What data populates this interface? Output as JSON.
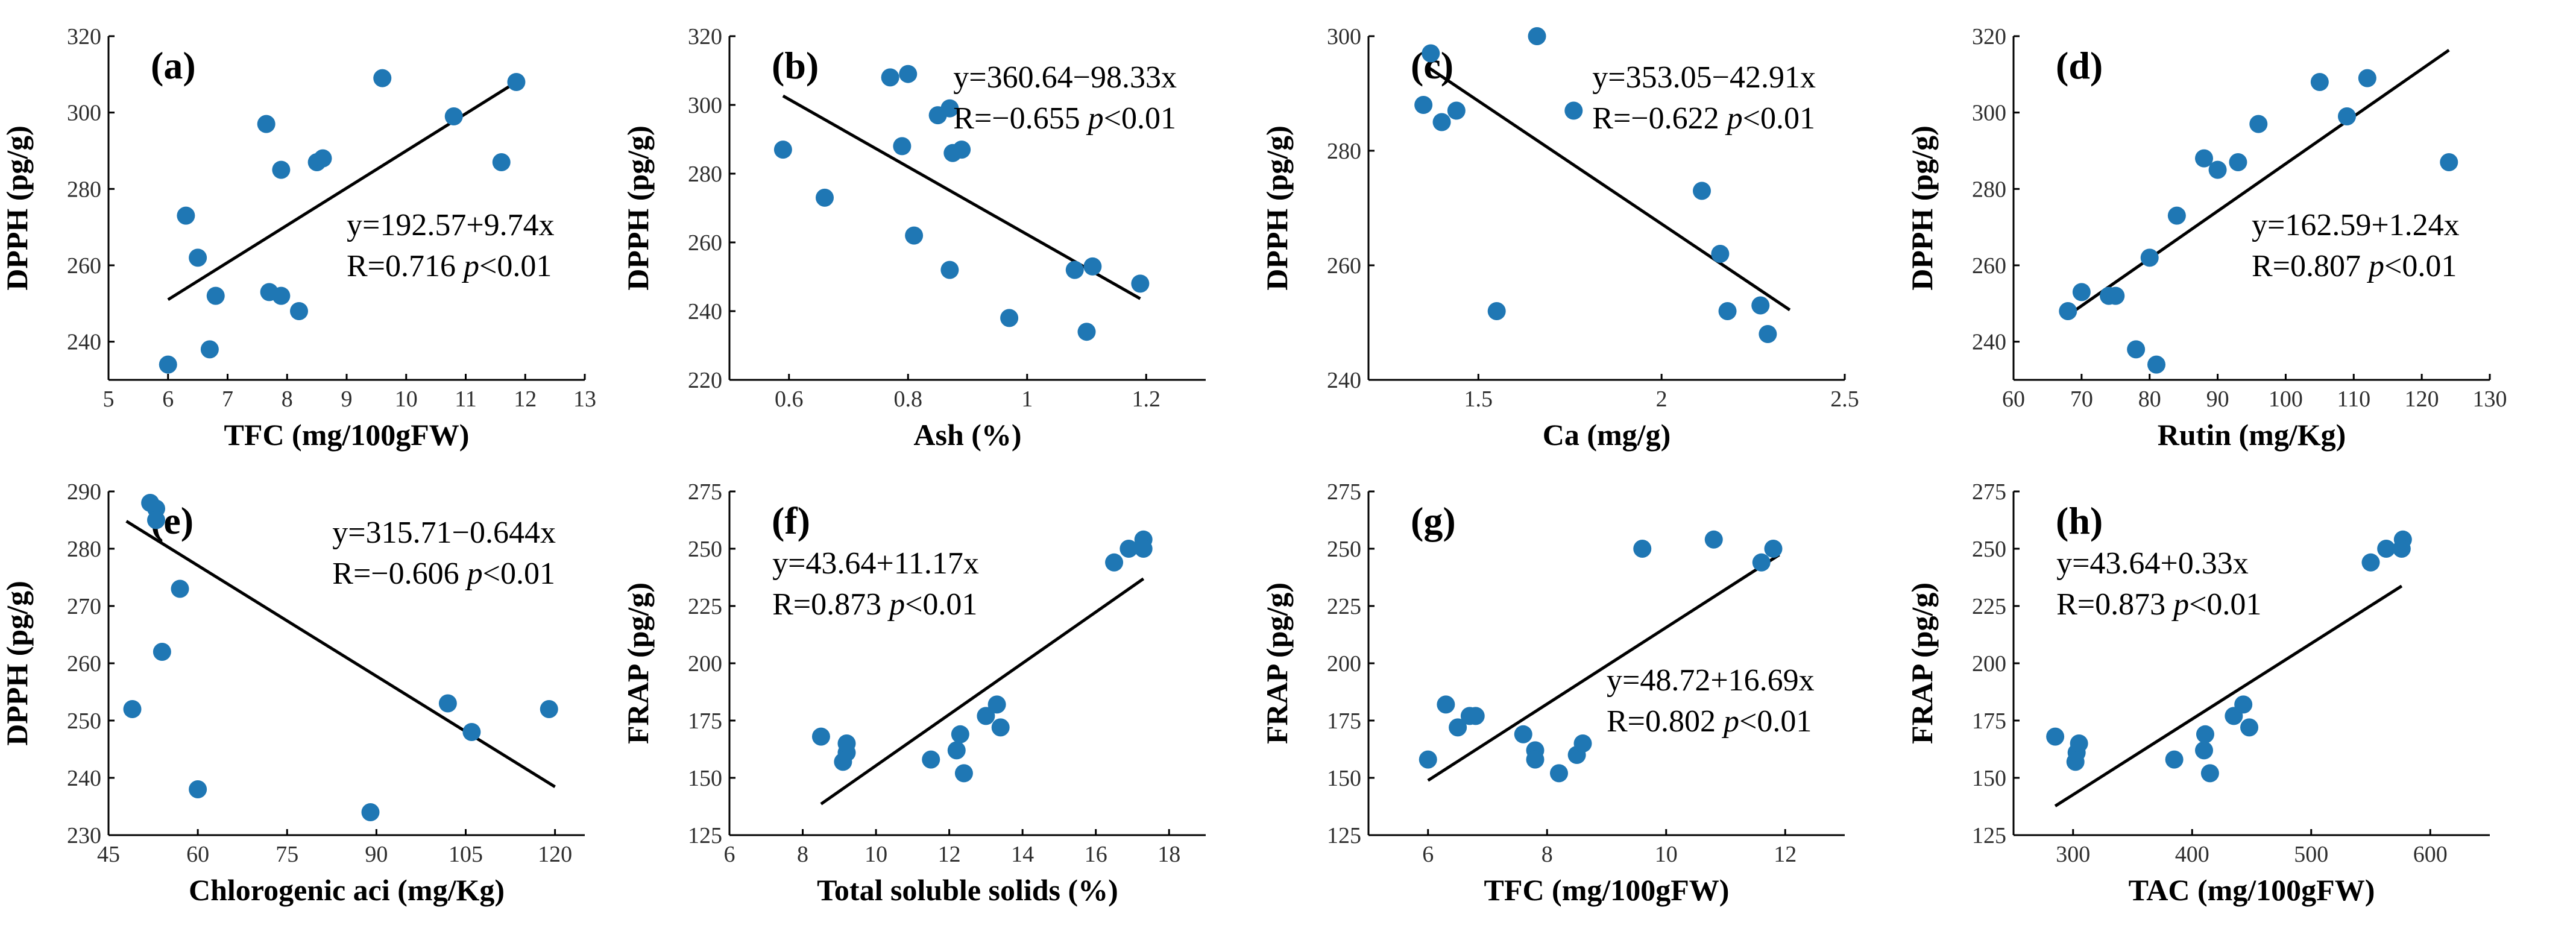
{
  "chart_data": [
    {
      "type": "scatter",
      "panel": "(a)",
      "xlabel": "TFC (mg/100gFW)",
      "ylabel": "DPPH (pg/g)",
      "xlim": [
        5,
        13
      ],
      "ylim": [
        230,
        320
      ],
      "xticks": [
        5,
        6,
        7,
        8,
        9,
        10,
        11,
        12,
        13
      ],
      "yticks": [
        240,
        260,
        280,
        300,
        320
      ],
      "points": [
        [
          6.0,
          234
        ],
        [
          6.3,
          273
        ],
        [
          6.5,
          262
        ],
        [
          6.7,
          238
        ],
        [
          6.8,
          252
        ],
        [
          7.65,
          297
        ],
        [
          7.7,
          253
        ],
        [
          7.9,
          252
        ],
        [
          7.9,
          285
        ],
        [
          8.2,
          248
        ],
        [
          8.5,
          287
        ],
        [
          8.6,
          288
        ],
        [
          9.6,
          309
        ],
        [
          10.8,
          299
        ],
        [
          11.6,
          287
        ],
        [
          11.85,
          308
        ]
      ],
      "fit": {
        "intercept": 192.57,
        "slope": 9.74,
        "x_range": [
          6.0,
          11.9
        ]
      },
      "annotation": {
        "equation": "y=192.57+9.74x",
        "r_prefix": "R=0.716 ",
        "p_italic": "p",
        "p_suffix": "<0.01",
        "position": "center-right"
      }
    },
    {
      "type": "scatter",
      "panel": "(b)",
      "xlabel": "Ash (%)",
      "ylabel": "DPPH (pg/g)",
      "xlim": [
        0.5,
        1.3
      ],
      "ylim": [
        220,
        320
      ],
      "xticks": [
        0.6,
        0.8,
        1.0,
        1.2
      ],
      "yticks": [
        220,
        240,
        260,
        280,
        300,
        320
      ],
      "points": [
        [
          0.59,
          287
        ],
        [
          0.66,
          273
        ],
        [
          0.77,
          308
        ],
        [
          0.79,
          288
        ],
        [
          0.8,
          309
        ],
        [
          0.81,
          262
        ],
        [
          0.85,
          297
        ],
        [
          0.87,
          252
        ],
        [
          0.87,
          299
        ],
        [
          0.875,
          286
        ],
        [
          0.89,
          287
        ],
        [
          0.97,
          238
        ],
        [
          1.08,
          252
        ],
        [
          1.1,
          234
        ],
        [
          1.11,
          253
        ],
        [
          1.19,
          248
        ]
      ],
      "fit": {
        "intercept": 360.64,
        "slope": -98.33,
        "x_range": [
          0.59,
          1.19
        ]
      },
      "annotation": {
        "equation": "y=360.64−98.33x",
        "r_prefix": "R=−0.655 ",
        "p_italic": "p",
        "p_suffix": "<0.01",
        "position": "top-right"
      }
    },
    {
      "type": "scatter",
      "panel": "(c)",
      "xlabel": "Ca (mg/g)",
      "ylabel": "DPPH (pg/g)",
      "xlim": [
        1.2,
        2.5
      ],
      "ylim": [
        240,
        300
      ],
      "xticks": [
        1.5,
        2.0,
        2.5
      ],
      "yticks": [
        240,
        260,
        280,
        300
      ],
      "points": [
        [
          1.35,
          288
        ],
        [
          1.37,
          297
        ],
        [
          1.4,
          285
        ],
        [
          1.44,
          287
        ],
        [
          1.55,
          252
        ],
        [
          1.66,
          300
        ],
        [
          1.76,
          287
        ],
        [
          2.11,
          273
        ],
        [
          2.16,
          262
        ],
        [
          2.18,
          252
        ],
        [
          2.27,
          253
        ],
        [
          2.29,
          248
        ]
      ],
      "fit": {
        "intercept": 353.05,
        "slope": -42.91,
        "x_range": [
          1.36,
          2.35
        ]
      },
      "annotation": {
        "equation": "y=353.05−42.91x",
        "r_prefix": "R=−0.622 ",
        "p_italic": "p",
        "p_suffix": "<0.01",
        "position": "top-right"
      }
    },
    {
      "type": "scatter",
      "panel": "(d)",
      "xlabel": "Rutin (mg/Kg)",
      "ylabel": "DPPH (pg/g)",
      "xlim": [
        60,
        130
      ],
      "ylim": [
        230,
        320
      ],
      "xticks": [
        60,
        70,
        80,
        90,
        100,
        110,
        120,
        130
      ],
      "yticks": [
        240,
        260,
        280,
        300,
        320
      ],
      "points": [
        [
          68,
          248
        ],
        [
          70,
          253
        ],
        [
          74,
          252
        ],
        [
          75,
          252
        ],
        [
          78,
          238
        ],
        [
          80,
          262
        ],
        [
          81,
          234
        ],
        [
          84,
          273
        ],
        [
          88,
          288
        ],
        [
          90,
          285
        ],
        [
          93,
          287
        ],
        [
          96,
          297
        ],
        [
          105,
          308
        ],
        [
          109,
          299
        ],
        [
          112,
          309
        ],
        [
          124,
          287
        ]
      ],
      "fit": {
        "intercept": 162.59,
        "slope": 1.24,
        "x_range": [
          68,
          124
        ]
      },
      "annotation": {
        "equation": "y=162.59+1.24x",
        "r_prefix": "R=0.807 ",
        "p_italic": "p",
        "p_suffix": "<0.01",
        "position": "center-right"
      }
    },
    {
      "type": "scatter",
      "panel": "(e)",
      "xlabel": "Chlorogenic aci (mg/Kg)",
      "ylabel": "DPPH (pg/g)",
      "xlim": [
        45,
        125
      ],
      "ylim": [
        230,
        290
      ],
      "xticks": [
        45,
        60,
        75,
        90,
        105,
        120
      ],
      "yticks": [
        230,
        240,
        250,
        260,
        270,
        280,
        290
      ],
      "points": [
        [
          49,
          252
        ],
        [
          52,
          288
        ],
        [
          53,
          287
        ],
        [
          53,
          285
        ],
        [
          54,
          262
        ],
        [
          57,
          273
        ],
        [
          60,
          238
        ],
        [
          89,
          234
        ],
        [
          102,
          253
        ],
        [
          106,
          248
        ],
        [
          119,
          252
        ]
      ],
      "fit": {
        "intercept": 315.71,
        "slope": -0.644,
        "x_range": [
          48,
          120
        ]
      },
      "annotation": {
        "equation": "y=315.71−0.644x",
        "r_prefix": "R=−0.606 ",
        "p_italic": "p",
        "p_suffix": "<0.01",
        "position": "top-right"
      }
    },
    {
      "type": "scatter",
      "panel": "(f)",
      "xlabel": "Total soluble solids (%)",
      "ylabel": "FRAP (pg/g)",
      "xlim": [
        6,
        19
      ],
      "ylim": [
        125,
        275
      ],
      "xticks": [
        6,
        8,
        10,
        12,
        14,
        16,
        18
      ],
      "yticks": [
        125,
        150,
        175,
        200,
        225,
        250,
        275
      ],
      "points": [
        [
          8.5,
          168
        ],
        [
          9.1,
          157
        ],
        [
          9.2,
          161
        ],
        [
          9.2,
          165
        ],
        [
          11.5,
          158
        ],
        [
          12.2,
          162
        ],
        [
          12.3,
          169
        ],
        [
          12.4,
          152
        ],
        [
          13.0,
          177
        ],
        [
          13.3,
          182
        ],
        [
          13.4,
          172
        ],
        [
          16.5,
          244
        ],
        [
          16.9,
          250
        ],
        [
          17.3,
          254
        ],
        [
          17.3,
          250
        ]
      ],
      "fit": {
        "intercept": 43.64,
        "slope": 11.17,
        "x_range": [
          8.5,
          17.3
        ]
      },
      "annotation": {
        "equation": "y=43.64+11.17x",
        "r_prefix": "R=0.873 ",
        "p_italic": "p",
        "p_suffix": "<0.01",
        "position": "top-left"
      }
    },
    {
      "type": "scatter",
      "panel": "(g)",
      "xlabel": "TFC (mg/100gFW)",
      "ylabel": "FRAP (pg/g)",
      "xlim": [
        5,
        13
      ],
      "ylim": [
        125,
        275
      ],
      "xticks": [
        6,
        8,
        10,
        12
      ],
      "yticks": [
        125,
        150,
        175,
        200,
        225,
        250,
        275
      ],
      "points": [
        [
          6.0,
          158
        ],
        [
          6.3,
          182
        ],
        [
          6.5,
          172
        ],
        [
          6.7,
          177
        ],
        [
          6.8,
          177
        ],
        [
          7.6,
          169
        ],
        [
          7.8,
          162
        ],
        [
          7.8,
          158
        ],
        [
          8.2,
          152
        ],
        [
          8.5,
          160
        ],
        [
          8.6,
          165
        ],
        [
          9.6,
          250
        ],
        [
          10.8,
          254
        ],
        [
          11.6,
          244
        ],
        [
          11.8,
          250
        ]
      ],
      "fit": {
        "intercept": 48.72,
        "slope": 16.69,
        "x_range": [
          6.0,
          11.9
        ]
      },
      "annotation": {
        "equation": "y=48.72+16.69x",
        "r_prefix": "R=0.802 ",
        "p_italic": "p",
        "p_suffix": "<0.01",
        "position": "center-right"
      }
    },
    {
      "type": "scatter",
      "panel": "(h)",
      "xlabel": "TAC (mg/100gFW)",
      "ylabel": "FRAP (pg/g)",
      "xlim": [
        250,
        650
      ],
      "ylim": [
        125,
        275
      ],
      "xticks": [
        300,
        400,
        500,
        600
      ],
      "yticks": [
        125,
        150,
        175,
        200,
        225,
        250,
        275
      ],
      "points": [
        [
          285,
          168
        ],
        [
          302,
          157
        ],
        [
          303,
          161
        ],
        [
          305,
          165
        ],
        [
          385,
          158
        ],
        [
          410,
          162
        ],
        [
          411,
          169
        ],
        [
          415,
          152
        ],
        [
          435,
          177
        ],
        [
          443,
          182
        ],
        [
          448,
          172
        ],
        [
          550,
          244
        ],
        [
          563,
          250
        ],
        [
          577,
          254
        ],
        [
          576,
          250
        ]
      ],
      "fit": {
        "intercept": 43.64,
        "slope": 0.33,
        "x_range": [
          285,
          576
        ]
      },
      "annotation": {
        "equation": "y=43.64+0.33x",
        "r_prefix": "R=0.873 ",
        "p_italic": "p",
        "p_suffix": "<0.01",
        "position": "top-left"
      }
    }
  ]
}
